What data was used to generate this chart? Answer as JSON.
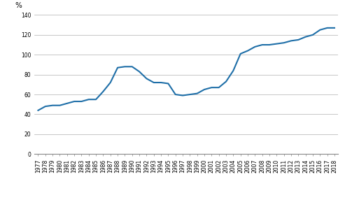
{
  "years": [
    1977,
    1978,
    1979,
    1980,
    1981,
    1982,
    1983,
    1984,
    1985,
    1986,
    1987,
    1988,
    1989,
    1990,
    1991,
    1992,
    1993,
    1994,
    1995,
    1996,
    1997,
    1998,
    1999,
    2000,
    2001,
    2002,
    2003,
    2004,
    2005,
    2006,
    2007,
    2008,
    2009,
    2010,
    2011,
    2012,
    2013,
    2014,
    2015,
    2016,
    2017,
    2018
  ],
  "values": [
    44,
    48,
    49,
    49,
    51,
    53,
    53,
    55,
    55,
    63,
    72,
    87,
    88,
    88,
    83,
    76,
    72,
    72,
    71,
    60,
    59,
    60,
    61,
    65,
    67,
    67,
    73,
    84,
    101,
    104,
    108,
    110,
    110,
    111,
    112,
    114,
    115,
    118,
    120,
    125,
    127,
    127
  ],
  "line_color": "#1f6fa8",
  "line_width": 1.5,
  "ylabel": "%",
  "ylim": [
    0,
    140
  ],
  "yticks": [
    0,
    20,
    40,
    60,
    80,
    100,
    120,
    140
  ],
  "grid_color": "#b0b0b0",
  "grid_linewidth": 0.5,
  "background_color": "#ffffff",
  "tick_fontsize": 5.5,
  "ylabel_fontsize": 7.5
}
